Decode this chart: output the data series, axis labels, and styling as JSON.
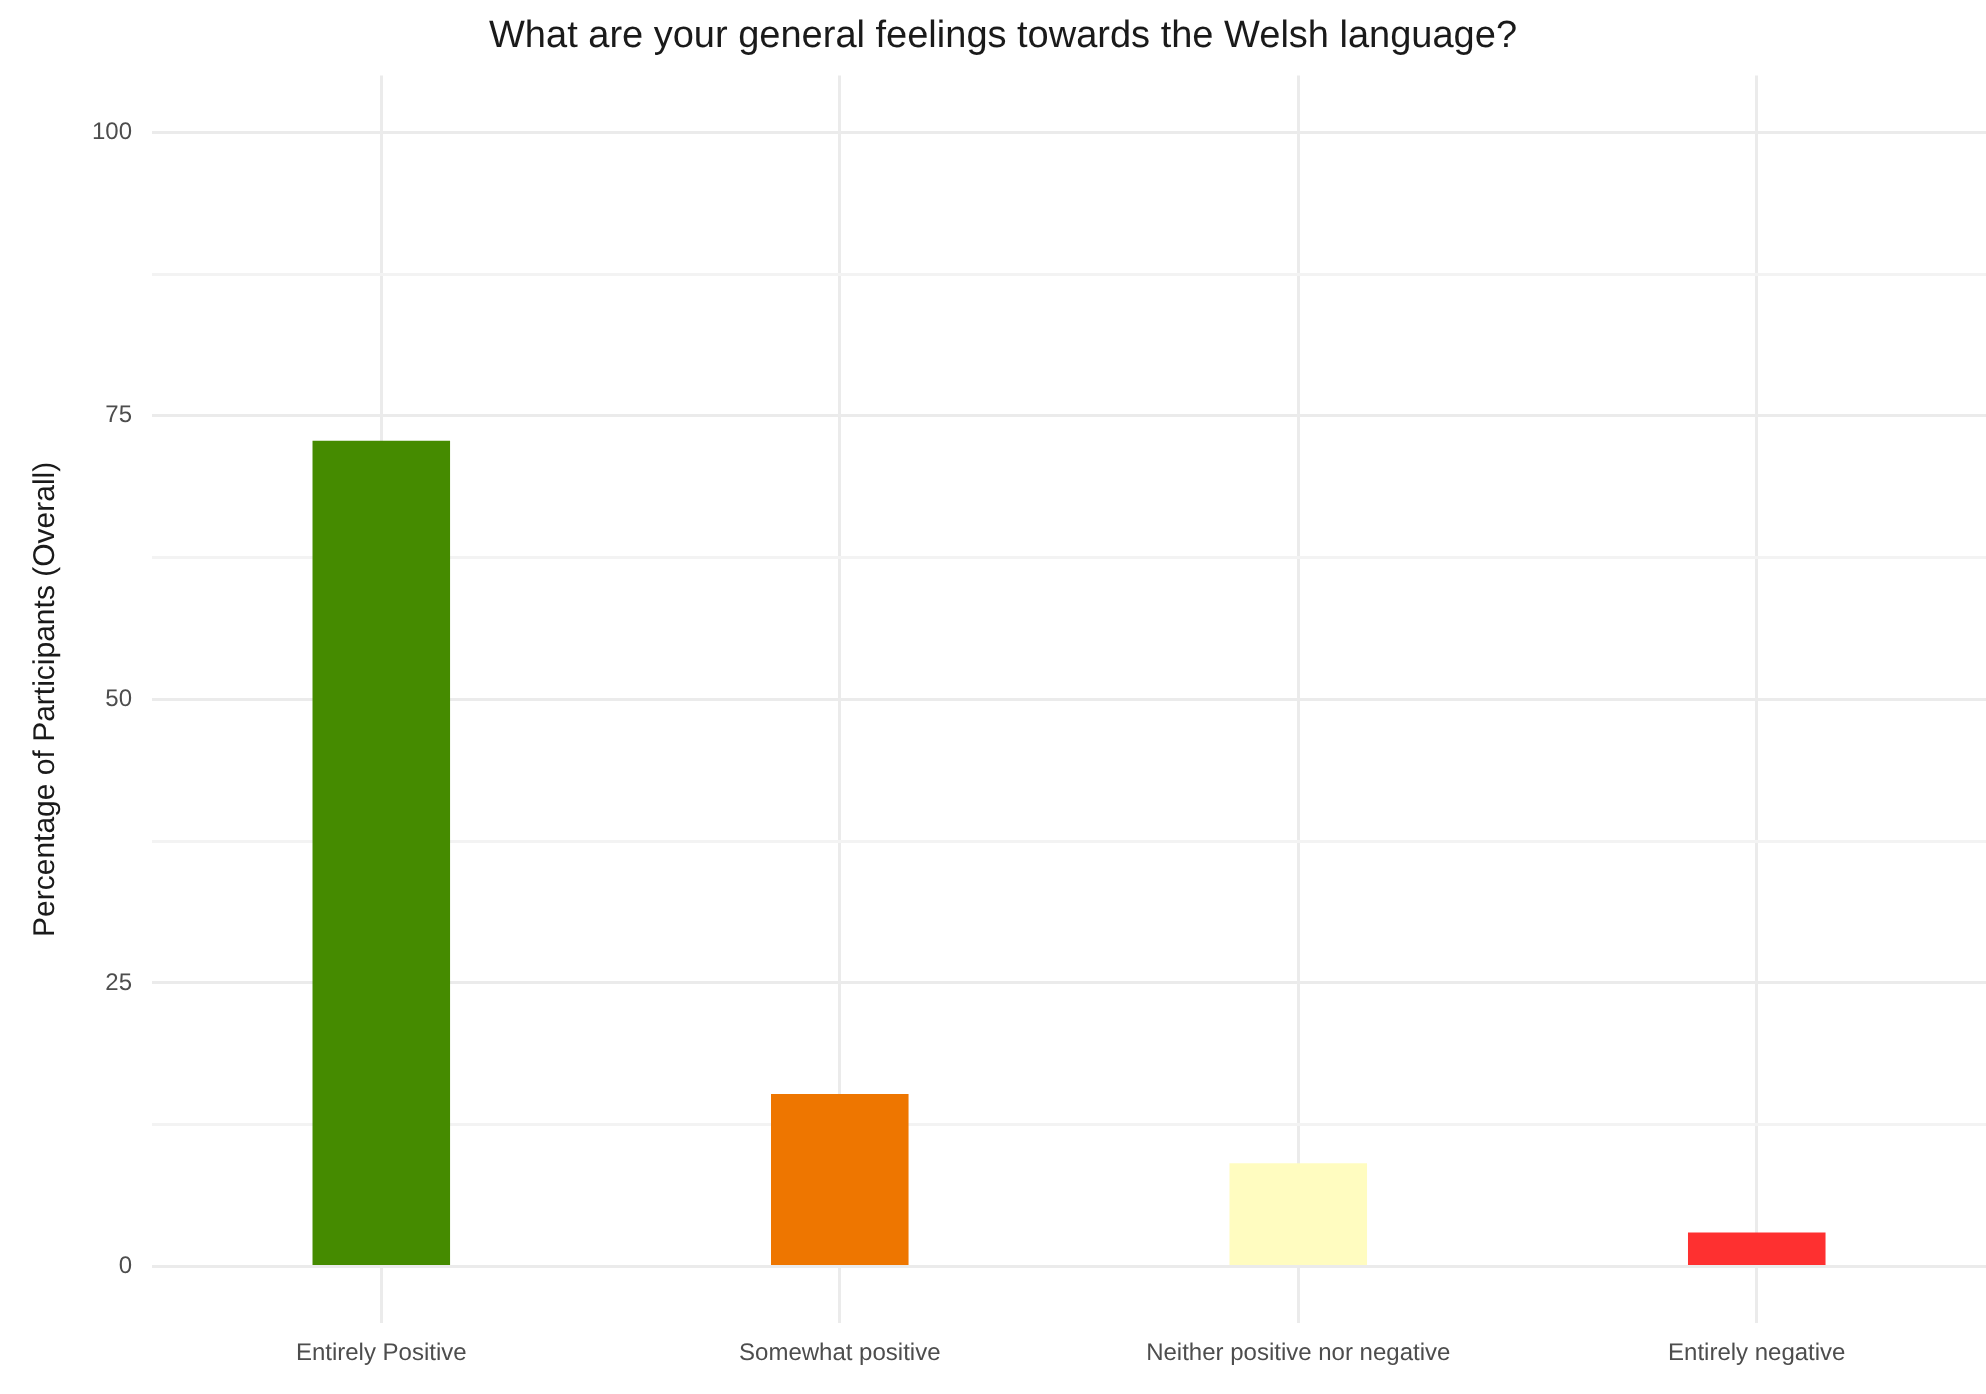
{
  "chart_data": {
    "type": "bar",
    "title": "What are your general feelings towards the Welsh language?",
    "ylabel": "Percentage of Participants (Overall)",
    "categories": [
      "Entirely Positive",
      "Somewhat positive",
      "Neither positive nor negative",
      "Entirely negative"
    ],
    "values": [
      72.8,
      15.2,
      9.1,
      3.0
    ],
    "colors": [
      "#458b00",
      "#ee7600",
      "#fffcc0",
      "#fe3030"
    ],
    "ylim": [
      -5,
      105
    ],
    "yticks": [
      0,
      {
        "value": 12.5,
        "label": null
      },
      25,
      {
        "value": 37.5,
        "label": null
      },
      50,
      {
        "value": 62.5,
        "label": null
      },
      75,
      {
        "value": 87.5,
        "label": null
      },
      100
    ],
    "grid": true
  }
}
